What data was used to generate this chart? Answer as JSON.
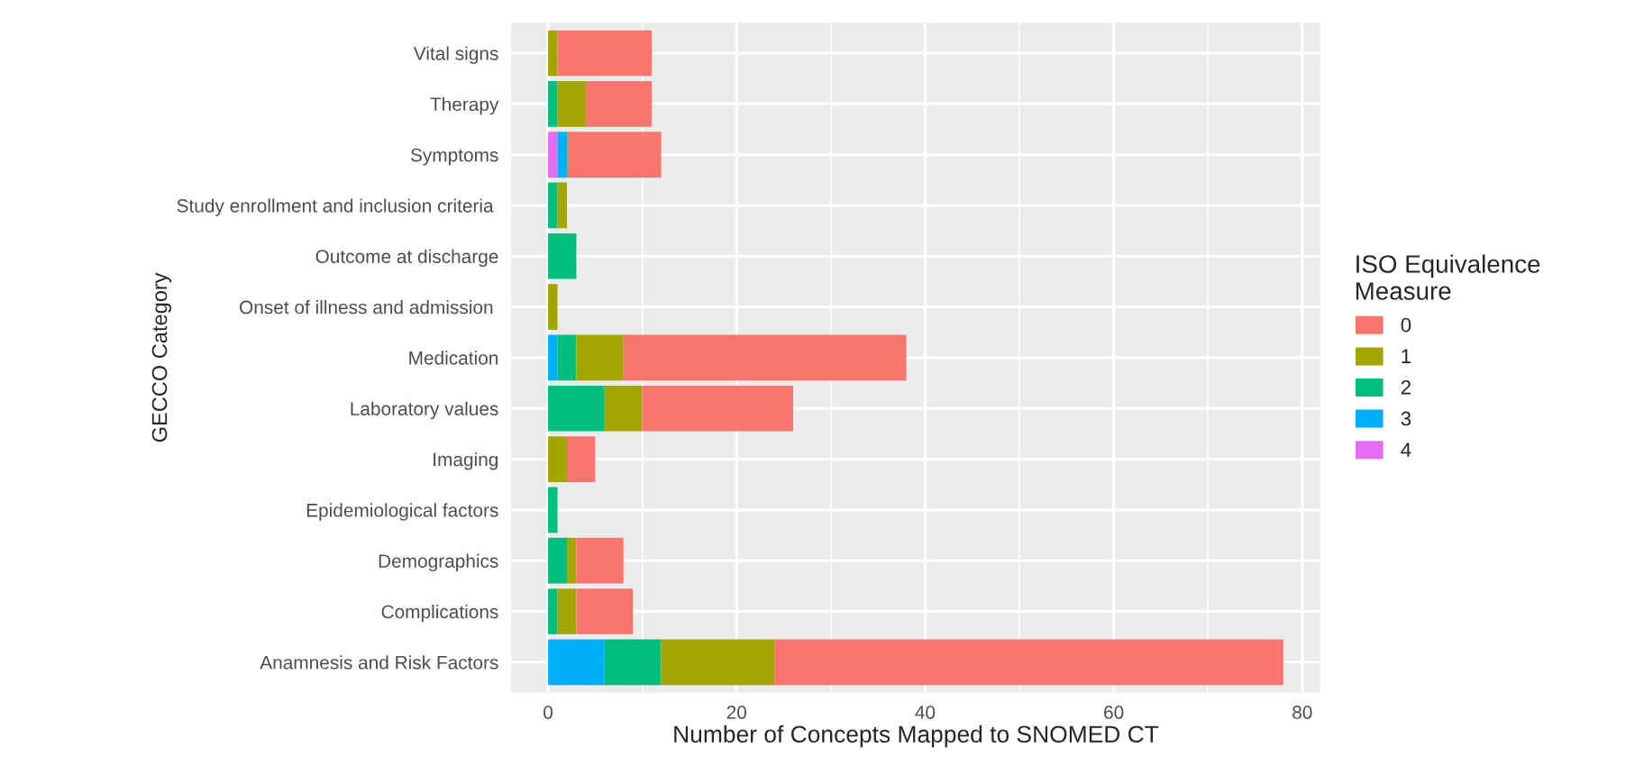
{
  "chart_data": {
    "type": "bar",
    "orientation": "horizontal",
    "stacked": true,
    "xlabel": "Number of Concepts Mapped to SNOMED CT",
    "ylabel": "GECCO Category",
    "legend_title": "ISO Equivalence\nMeasure",
    "categories": [
      "Vital signs",
      "Therapy",
      "Symptoms",
      "Study enrollment and inclusion criteria ",
      "Outcome at discharge",
      "Onset of illness and admission ",
      "Medication",
      "Laboratory values",
      "Imaging",
      "Epidemiological factors",
      "Demographics",
      "Complications",
      "Anamnesis and Risk Factors"
    ],
    "series": [
      {
        "name": "4",
        "color": "#e76bf3",
        "values": [
          0,
          0,
          1,
          0,
          0,
          0,
          0,
          0,
          0,
          0,
          0,
          0,
          0
        ]
      },
      {
        "name": "3",
        "color": "#00b0f6",
        "values": [
          0,
          0,
          1,
          0,
          0,
          0,
          1,
          0,
          0,
          0,
          0,
          0,
          6
        ]
      },
      {
        "name": "2",
        "color": "#00bf7d",
        "values": [
          0,
          1,
          0,
          1,
          3,
          0,
          2,
          6,
          0,
          1,
          2,
          1,
          6
        ]
      },
      {
        "name": "1",
        "color": "#a3a500",
        "values": [
          1,
          3,
          0,
          1,
          0,
          1,
          5,
          4,
          2,
          0,
          1,
          2,
          12
        ]
      },
      {
        "name": "0",
        "color": "#f8766d",
        "values": [
          10,
          7,
          10,
          0,
          0,
          0,
          30,
          16,
          3,
          0,
          5,
          6,
          54
        ]
      }
    ],
    "xlim": [
      -3.9,
      81.9
    ],
    "xticks": [
      0,
      20,
      40,
      60,
      80
    ],
    "grid": true,
    "legend": "right"
  }
}
